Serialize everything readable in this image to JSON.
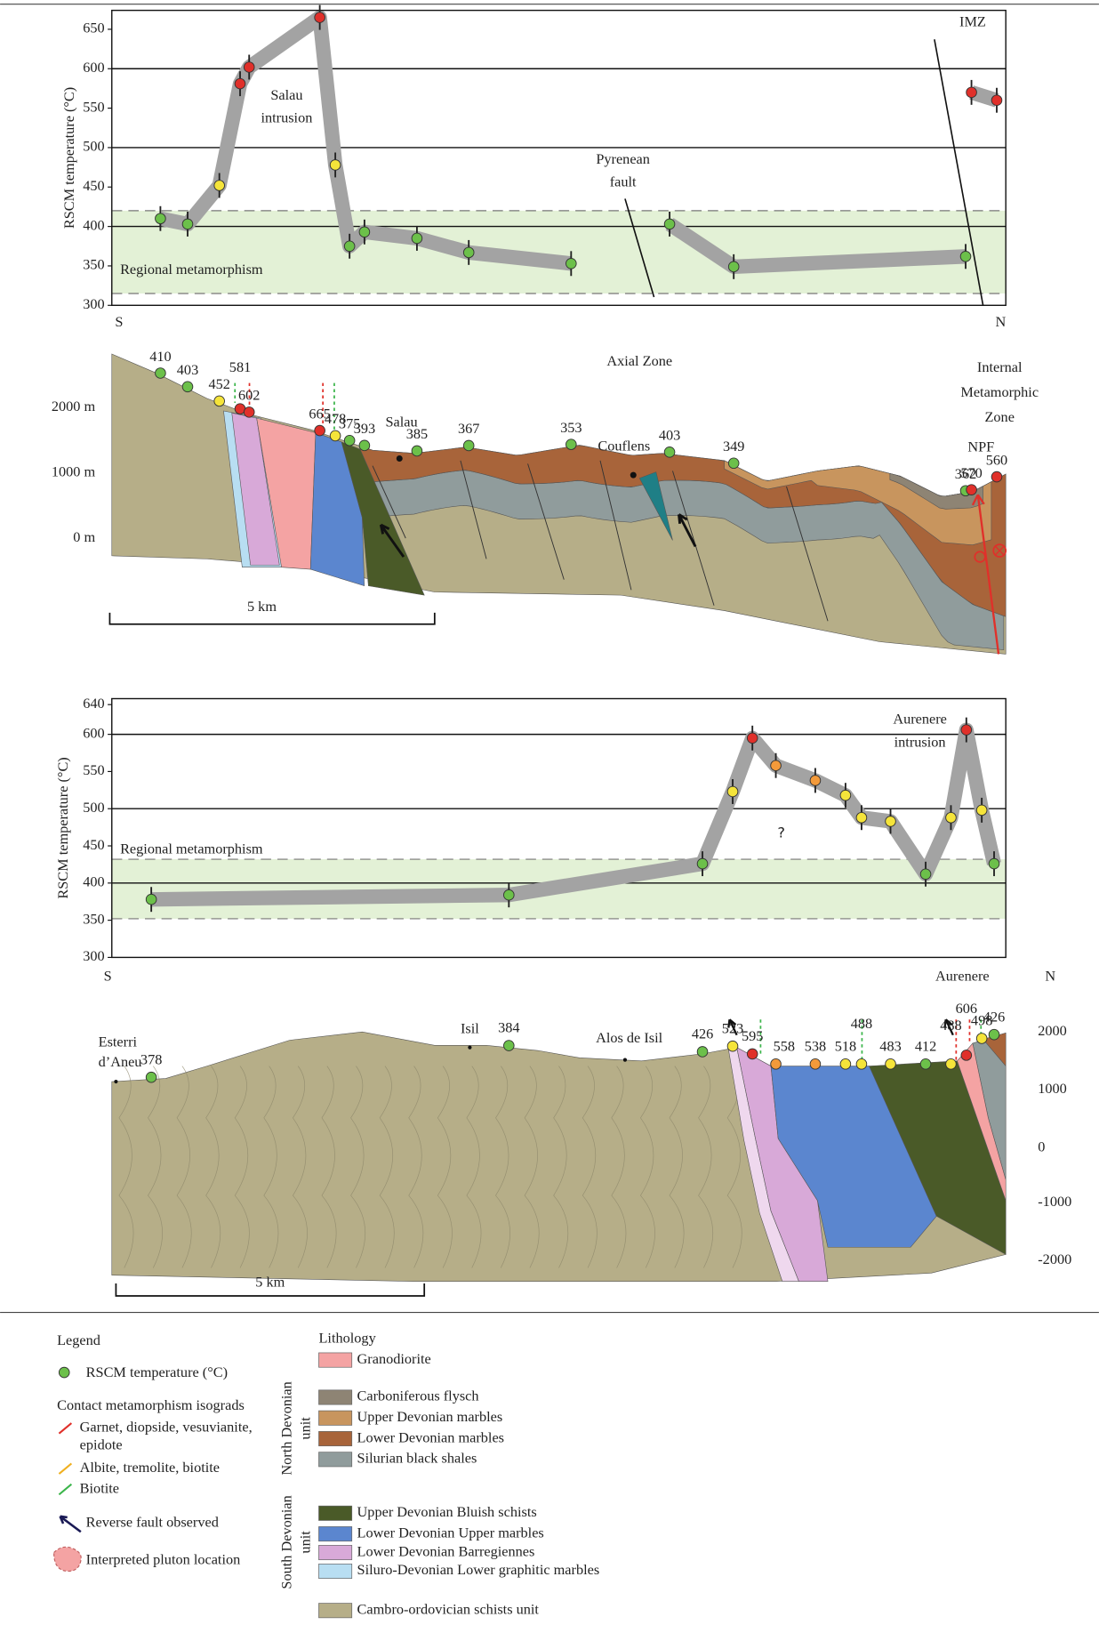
{
  "chart_data": [
    {
      "type": "scatter",
      "y_label": "RSCM temperature (°C)",
      "x_start_label": "S",
      "x_end_label": "N",
      "x": [
        0.75,
        1.17,
        1.66,
        1.98,
        2.12,
        3.21,
        3.45,
        3.67,
        3.9,
        4.71,
        5.51,
        7.09,
        8.61,
        9.6,
        13.18,
        13.27,
        13.66
      ],
      "values": [
        410,
        403,
        452,
        581,
        602,
        665,
        478,
        375,
        393,
        385,
        367,
        353,
        403,
        349,
        362,
        570,
        560
      ],
      "colors": [
        "#6cc04a",
        "#6cc04a",
        "#f5e43a",
        "#e0302a",
        "#e0302a",
        "#e0302a",
        "#f5e43a",
        "#6cc04a",
        "#6cc04a",
        "#6cc04a",
        "#6cc04a",
        "#6cc04a",
        "#6cc04a",
        "#6cc04a",
        "#6cc04a",
        "#e0302a",
        "#e0302a"
      ],
      "xlim": [
        0,
        13.8
      ],
      "ylim": [
        300,
        674
      ],
      "yticks": [
        300,
        350,
        400,
        450,
        500,
        550,
        600,
        650
      ],
      "grid_values": [
        400,
        500,
        600
      ],
      "regional_band": {
        "label": "Regional metamorphism",
        "range": [
          315,
          420
        ],
        "color": "#e3f1d6"
      },
      "trend_color": "#a3a3a3",
      "annotations": {
        "salau_intrusion": [
          "Salau",
          "intrusion"
        ],
        "pyrenean_fault": [
          "Pyrenean",
          "fault"
        ],
        "imz": "IMZ"
      }
    },
    {
      "type": "scatter",
      "y_label": "RSCM temperature (°C)",
      "x_start_label": "S",
      "x_end_label": "N",
      "x": [
        0.64,
        6.44,
        9.58,
        10.07,
        10.39,
        10.77,
        11.41,
        11.9,
        12.16,
        12.63,
        13.2,
        13.61,
        13.86,
        14.11,
        14.31
      ],
      "values": [
        378,
        384,
        426,
        523,
        595,
        558,
        538,
        518,
        488,
        483,
        412,
        488,
        606,
        498,
        426
      ],
      "colors": [
        "#6cc04a",
        "#6cc04a",
        "#6cc04a",
        "#f5e43a",
        "#e0302a",
        "#f39a3a",
        "#f39a3a",
        "#f5e43a",
        "#f5e43a",
        "#f5e43a",
        "#6cc04a",
        "#f5e43a",
        "#e0302a",
        "#f5e43a",
        "#6cc04a"
      ],
      "xlim": [
        0,
        14.5
      ],
      "ylim": [
        300,
        648
      ],
      "yticks": [
        300,
        350,
        400,
        450,
        500,
        550,
        600,
        640
      ],
      "grid_values": [
        400,
        500,
        600
      ],
      "regional_band": {
        "label": "Regional metamorphism",
        "range": [
          352,
          432
        ],
        "color": "#e3f1d6"
      },
      "trend_color": "#a3a3a3",
      "annotations": {
        "aurenere_intrusion": [
          "Aurenere",
          "intrusion"
        ],
        "question": "?"
      }
    }
  ],
  "section_1": {
    "axial_zone": "Axial Zone",
    "imz_label": [
      "Internal",
      "Metamorphic",
      "Zone"
    ],
    "npf": "NPF",
    "salau": "Salau",
    "couflens": "Couflens",
    "depth_labels": [
      "2000 m",
      "1000 m",
      "0 m"
    ],
    "scale_bar": "5 km"
  },
  "section_2": {
    "esterri": [
      "Esterri",
      "d’Aneu"
    ],
    "isil": "Isil",
    "alos": "Alos de Isil",
    "aurenere": "Aurenere",
    "depth_labels": [
      "2000",
      "1000",
      "0",
      "-1000",
      "-2000"
    ],
    "scale_bar": "5 km"
  },
  "legend": {
    "title": "Legend",
    "rscm": "RSCM temperature (°C)",
    "isograds_title": "Contact metamorphism isograds",
    "isograds": [
      {
        "lines": [
          "Garnet, diopside, vesuvianite,",
          "epidote"
        ],
        "color": "#e0302a"
      },
      {
        "lines": [
          "Albite, tremolite, biotite"
        ],
        "color": "#f0b020"
      },
      {
        "lines": [
          "Biotite"
        ],
        "color": "#3bb54a"
      }
    ],
    "reverse_fault": "Reverse fault observed",
    "pluton": "Interpreted pluton location",
    "lithology_title": "Lithology",
    "lithology": [
      {
        "name": "Granodiorite",
        "color": "#f4a3a3"
      },
      {
        "name": "Carboniferous flysch",
        "color": "#8e8474"
      },
      {
        "name": "Upper Devonian marbles",
        "color": "#c8955e"
      },
      {
        "name": "Lower Devonian marbles",
        "color": "#a8643a"
      },
      {
        "name": "Silurian black shales",
        "color": "#909c9c"
      },
      {
        "name": "Upper Devonian Bluish schists",
        "color": "#4a5a28"
      },
      {
        "name": "Lower Devonian Upper marbles",
        "color": "#5b86cf"
      },
      {
        "name": "Lower Devonian Barregiennes",
        "color": "#d8a9d8"
      },
      {
        "name": "Siluro-Devonian Lower graphitic marbles",
        "color": "#b8def2"
      },
      {
        "name": "Cambro-ordovician schists unit",
        "color": "#b6ae88"
      }
    ],
    "north_unit": [
      "North Devonian",
      "unit"
    ],
    "south_unit": [
      "South Devonian",
      "unit"
    ]
  }
}
